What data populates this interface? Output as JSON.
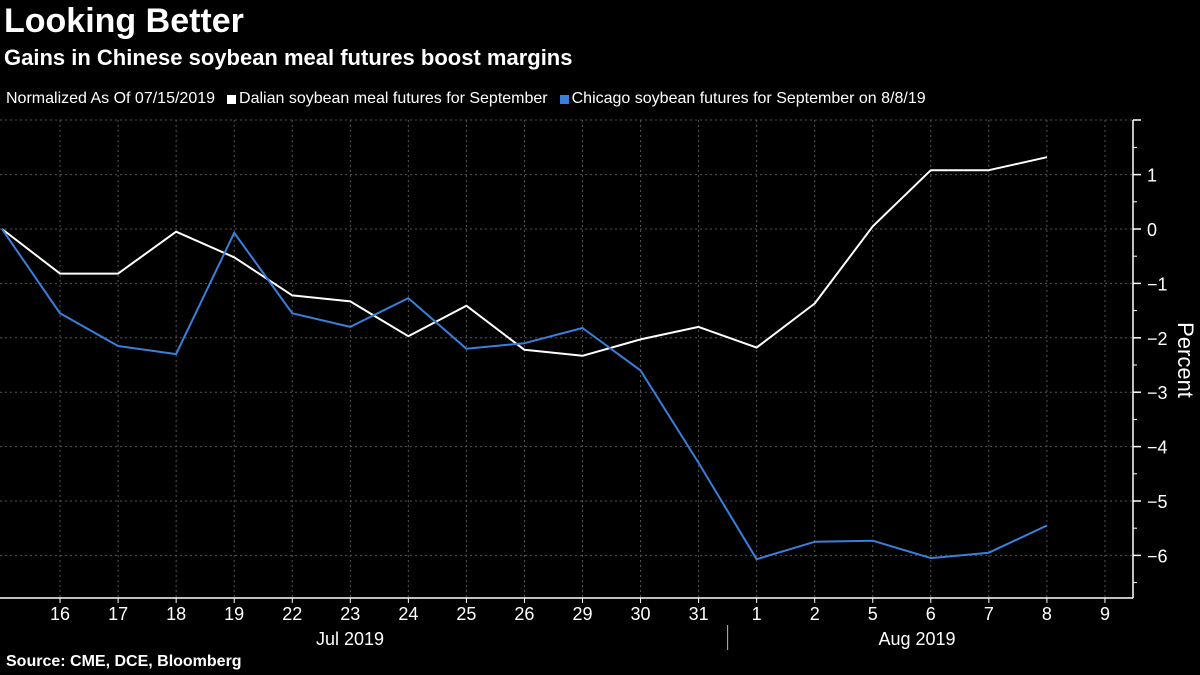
{
  "title": "Looking Better",
  "subtitle": "Gains in Chinese soybean meal futures boost margins",
  "legend_prefix": "Normalized As Of 07/15/2019",
  "source": "Source: CME, DCE, Bloomberg",
  "colors": {
    "background": "#000000",
    "dalian": "#ffffff",
    "chicago": "#3a7fdc",
    "grid": "#555555"
  },
  "chart_data": {
    "type": "line",
    "title": "Looking Better",
    "subtitle": "Gains in Chinese soybean meal futures boost margins",
    "ylabel": "Percent",
    "xlabel": "",
    "ylim": [
      -6.8,
      2
    ],
    "yticks": [
      1,
      0,
      -1,
      -2,
      -3,
      -4,
      -5,
      -6
    ],
    "grid": true,
    "legend_position": "top",
    "x": [
      "15",
      "16",
      "17",
      "18",
      "19",
      "22",
      "23",
      "24",
      "25",
      "26",
      "29",
      "30",
      "31",
      "1",
      "2",
      "5",
      "6",
      "7",
      "8",
      "9"
    ],
    "x_tick_labels": [
      "16",
      "17",
      "18",
      "19",
      "22",
      "23",
      "24",
      "25",
      "26",
      "29",
      "30",
      "31",
      "1",
      "2",
      "5",
      "6",
      "7",
      "8",
      "9"
    ],
    "month_labels": [
      "Jul 2019",
      "Aug 2019"
    ],
    "series": [
      {
        "name": "Dalian soybean meal futures for September",
        "color": "#ffffff",
        "values": [
          0,
          -0.82,
          -0.82,
          -0.05,
          -0.52,
          -1.22,
          -1.33,
          -1.97,
          -1.41,
          -2.22,
          -2.33,
          -2.03,
          -1.8,
          -2.18,
          -1.37,
          0.05,
          1.08,
          1.08,
          1.32,
          null
        ]
      },
      {
        "name": "Chicago soybean futures for September on 8/8/19",
        "color": "#3a7fdc",
        "values": [
          0,
          -1.55,
          -2.15,
          -2.3,
          -0.07,
          -1.55,
          -1.8,
          -1.27,
          -2.2,
          -2.1,
          -1.82,
          -2.6,
          -4.3,
          -6.07,
          -5.75,
          -5.73,
          -6.05,
          -5.95,
          -5.45,
          null
        ]
      }
    ]
  }
}
